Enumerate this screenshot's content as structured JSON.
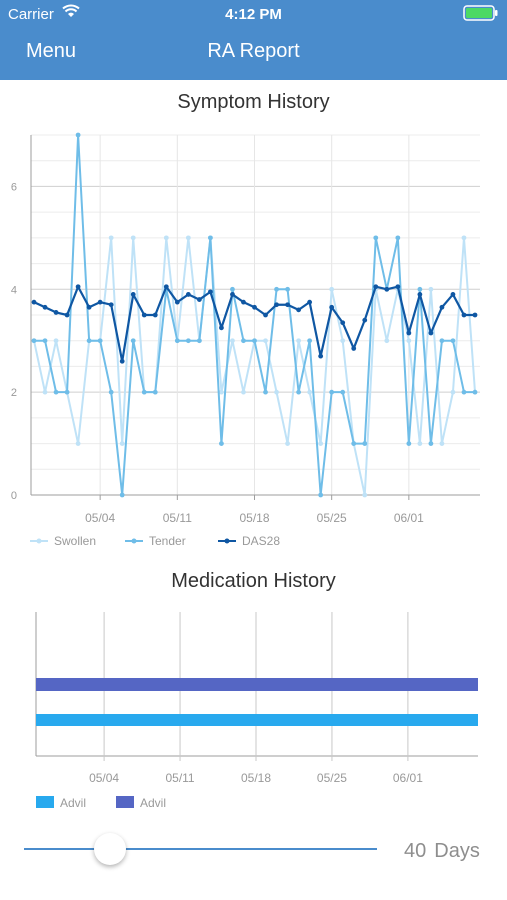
{
  "status_bar": {
    "carrier": "Carrier",
    "time": "4:12 PM"
  },
  "nav": {
    "menu": "Menu",
    "title": "RA Report"
  },
  "symptom": {
    "title": "Symptom History",
    "y_ticks": [
      "0",
      "2",
      "4",
      "6"
    ],
    "x_ticks": [
      "05/04",
      "05/11",
      "05/18",
      "05/25",
      "06/01"
    ],
    "legend": [
      "Swollen",
      "Tender",
      "DAS28"
    ]
  },
  "medication": {
    "title": "Medication History",
    "x_ticks": [
      "05/04",
      "05/11",
      "05/18",
      "05/25",
      "06/01"
    ],
    "legend": [
      "Advil",
      "Advil"
    ]
  },
  "slider": {
    "value": "40",
    "unit": "Days"
  },
  "colors": {
    "bar": "#4a8ccc",
    "swollen": "#bfe2f7",
    "tender": "#6fbde8",
    "das28": "#0f57a3",
    "advil1": "#28a9ee",
    "advil2": "#5566c4"
  },
  "chart_data": [
    {
      "type": "line",
      "title": "Symptom History",
      "x": [
        "04/28",
        "04/29",
        "04/30",
        "05/01",
        "05/02",
        "05/03",
        "05/04",
        "05/05",
        "05/06",
        "05/07",
        "05/08",
        "05/09",
        "05/10",
        "05/11",
        "05/12",
        "05/13",
        "05/14",
        "05/15",
        "05/16",
        "05/17",
        "05/18",
        "05/19",
        "05/20",
        "05/21",
        "05/22",
        "05/23",
        "05/24",
        "05/25",
        "05/26",
        "05/27",
        "05/28",
        "05/29",
        "05/30",
        "05/31",
        "06/01",
        "06/02",
        "06/03",
        "06/04",
        "06/05",
        "06/06",
        "06/07"
      ],
      "ylim": [
        0,
        7
      ],
      "series": [
        {
          "name": "Swollen",
          "values": [
            3,
            2,
            3,
            2,
            1,
            3,
            3,
            5,
            1,
            5,
            2,
            2,
            5,
            3,
            5,
            3,
            5,
            2,
            3,
            2,
            3,
            3,
            2,
            1,
            3,
            2,
            1,
            4,
            3,
            1,
            0,
            4,
            3,
            4,
            3,
            1,
            4,
            1,
            2,
            5,
            2
          ]
        },
        {
          "name": "Tender",
          "values": [
            3,
            3,
            2,
            2,
            7,
            3,
            3,
            2,
            0,
            3,
            2,
            2,
            4,
            3,
            3,
            3,
            5,
            1,
            4,
            3,
            3,
            2,
            4,
            4,
            2,
            3,
            0,
            2,
            2,
            1,
            1,
            5,
            4,
            5,
            1,
            4,
            1,
            3,
            3,
            2,
            2
          ]
        },
        {
          "name": "DAS28",
          "values": [
            3.75,
            3.65,
            3.55,
            3.5,
            4.05,
            3.65,
            3.75,
            3.7,
            2.6,
            3.9,
            3.5,
            3.5,
            4.05,
            3.75,
            3.9,
            3.8,
            3.95,
            3.25,
            3.9,
            3.75,
            3.65,
            3.5,
            3.7,
            3.7,
            3.6,
            3.75,
            2.7,
            3.65,
            3.35,
            2.85,
            3.4,
            4.05,
            4.0,
            4.05,
            3.15,
            3.9,
            3.15,
            3.65,
            3.9,
            3.5,
            3.5
          ]
        }
      ],
      "legend_position": "bottom-left",
      "grid": true
    },
    {
      "type": "bar",
      "title": "Medication History",
      "x_ticks": [
        "05/04",
        "05/11",
        "05/18",
        "05/25",
        "06/01"
      ],
      "series": [
        {
          "name": "Advil",
          "start": "04/28",
          "end": "06/07"
        },
        {
          "name": "Advil",
          "start": "04/28",
          "end": "06/07"
        }
      ],
      "legend_position": "bottom-left"
    }
  ]
}
